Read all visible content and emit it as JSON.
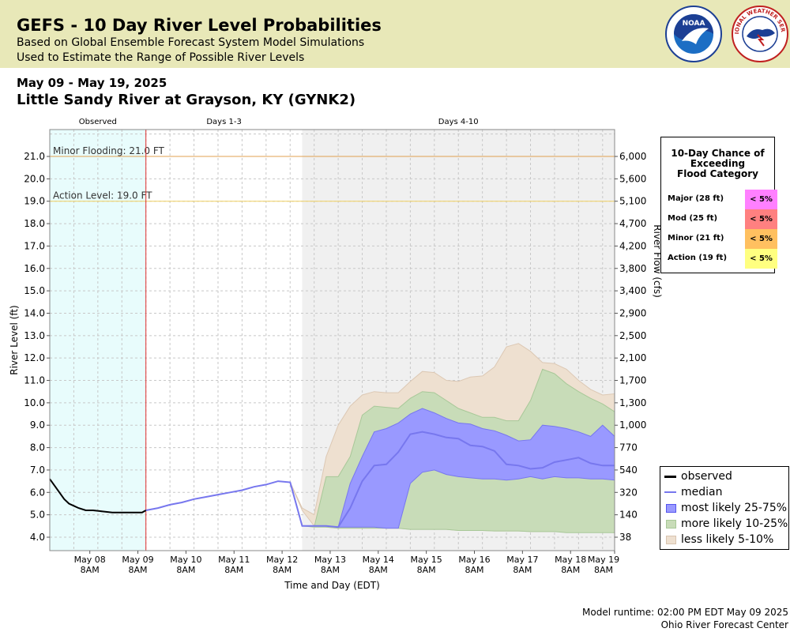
{
  "header": {
    "title": "GEFS - 10 Day River Level Probabilities",
    "subtitle1": "Based on Global Ensemble Forecast System Model Simulations",
    "subtitle2": "Used to Estimate the Range of Possible River Levels",
    "logo_noaa": "NOAA",
    "logo_nws": "NATIONAL WEATHER SERVICE"
  },
  "date_range": "May 09 - May 19, 2025",
  "station": "Little Sandy River at Grayson, KY (GYNK2)",
  "footer": {
    "runtime": "Model runtime: 02:00 PM EDT May 09 2025",
    "center": "Ohio River Forecast Center"
  },
  "exceedance": {
    "title_lines": [
      "10-Day Chance of",
      "Exceeding",
      "Flood Category"
    ],
    "rows": [
      {
        "label": "Major (28 ft)",
        "value": "< 5%",
        "color": "#ff80ff"
      },
      {
        "label": "Mod (25 ft)",
        "value": "< 5%",
        "color": "#ff8080"
      },
      {
        "label": "Minor (21 ft)",
        "value": "< 5%",
        "color": "#ffc060"
      },
      {
        "label": "Action (19 ft)",
        "value": "< 5%",
        "color": "#ffff80"
      }
    ]
  },
  "legend": [
    {
      "label": "observed",
      "type": "line",
      "color": "#000000"
    },
    {
      "label": "median",
      "type": "line",
      "color": "#7777ee"
    },
    {
      "label": "most likely 25-75%",
      "type": "box",
      "color": "#9999ff",
      "border": "#5555ee"
    },
    {
      "label": "more likely 10-25%",
      "type": "box",
      "color": "#c8dcb8",
      "border": "#a8c898"
    },
    {
      "label": "less likely 5-10%",
      "type": "box",
      "color": "#eee0d0",
      "border": "#d8c4b0"
    }
  ],
  "chart_data": {
    "type": "area",
    "xlabel": "Time and Day (EDT)",
    "ylabel": "River Level (ft)",
    "ylabel_right": "River Flow (cfs)",
    "ylim": [
      3.4,
      22.2
    ],
    "xlim_days": [
      7.5,
      19.25
    ],
    "grid": true,
    "x_ticks": [
      {
        "day": 8.333,
        "line1": "May 08",
        "line2": "8AM"
      },
      {
        "day": 9.333,
        "line1": "May 09",
        "line2": "8AM"
      },
      {
        "day": 10.333,
        "line1": "May 10",
        "line2": "8AM"
      },
      {
        "day": 11.333,
        "line1": "May 11",
        "line2": "8AM"
      },
      {
        "day": 12.333,
        "line1": "May 12",
        "line2": "8AM"
      },
      {
        "day": 13.333,
        "line1": "May 13",
        "line2": "8AM"
      },
      {
        "day": 14.333,
        "line1": "May 14",
        "line2": "8AM"
      },
      {
        "day": 15.333,
        "line1": "May 15",
        "line2": "8AM"
      },
      {
        "day": 16.333,
        "line1": "May 16",
        "line2": "8AM"
      },
      {
        "day": 17.333,
        "line1": "May 17",
        "line2": "8AM"
      },
      {
        "day": 18.333,
        "line1": "May 18",
        "line2": "8AM"
      },
      {
        "day": 19.333,
        "line1": "May 19",
        "line2": "8AM"
      }
    ],
    "y_ticks": [
      "4.0",
      "5.0",
      "6.0",
      "7.0",
      "8.0",
      "9.0",
      "10.0",
      "11.0",
      "12.0",
      "13.0",
      "14.0",
      "15.0",
      "16.0",
      "17.0",
      "18.0",
      "19.0",
      "20.0",
      "21.0"
    ],
    "right_ticks": [
      {
        "stage": 4.0,
        "label": "38"
      },
      {
        "stage": 5.0,
        "label": "140"
      },
      {
        "stage": 6.0,
        "label": "320"
      },
      {
        "stage": 7.0,
        "label": "540"
      },
      {
        "stage": 8.0,
        "label": "770"
      },
      {
        "stage": 9.0,
        "label": "1,000"
      },
      {
        "stage": 10.0,
        "label": "1,300"
      },
      {
        "stage": 11.0,
        "label": "1,700"
      },
      {
        "stage": 12.0,
        "label": "2,100"
      },
      {
        "stage": 13.0,
        "label": "2,500"
      },
      {
        "stage": 14.0,
        "label": "2,900"
      },
      {
        "stage": 15.0,
        "label": "3,400"
      },
      {
        "stage": 16.0,
        "label": "3,800"
      },
      {
        "stage": 17.0,
        "label": "4,200"
      },
      {
        "stage": 18.0,
        "label": "4,700"
      },
      {
        "stage": 19.0,
        "label": "5,100"
      },
      {
        "stage": 20.0,
        "label": "5,600"
      },
      {
        "stage": 21.0,
        "label": "6,000"
      }
    ],
    "periods": [
      {
        "label": "Observed",
        "start": 7.5,
        "end": 9.5,
        "color": "#e8fcfc"
      },
      {
        "label": "Days 1-3",
        "start": 9.5,
        "end": 12.75,
        "color": "#ffffff"
      },
      {
        "label": "Days 4-10",
        "start": 12.75,
        "end": 19.25,
        "color": "#f0f0f0"
      }
    ],
    "forecast_start": 9.5,
    "thresholds": [
      {
        "label": "Minor Flooding: 21.0 FT",
        "value": 21.0,
        "color": "#e0a050"
      },
      {
        "label": "Action Level: 19.0 FT",
        "value": 19.0,
        "color": "#f0d060"
      }
    ],
    "observed": {
      "x": [
        7.5,
        7.6,
        7.7,
        7.8,
        7.9,
        8.0,
        8.1,
        8.25,
        8.4,
        8.6,
        8.8,
        9.0,
        9.2,
        9.3,
        9.42,
        9.5
      ],
      "y": [
        6.6,
        6.3,
        6.0,
        5.7,
        5.5,
        5.4,
        5.3,
        5.2,
        5.2,
        5.15,
        5.1,
        5.1,
        5.1,
        5.1,
        5.1,
        5.2
      ]
    },
    "median": {
      "x": [
        9.5,
        9.75,
        10.0,
        10.25,
        10.5,
        10.75,
        11.0,
        11.25,
        11.5,
        11.75,
        12.0,
        12.25,
        12.5,
        12.75,
        13.0,
        13.25,
        13.5,
        13.75,
        14.0,
        14.25,
        14.5,
        14.75,
        15.0,
        15.25,
        15.5,
        15.75,
        16.0,
        16.25,
        16.5,
        16.75,
        17.0,
        17.25,
        17.5,
        17.75,
        18.0,
        18.25,
        18.5,
        18.75,
        19.0,
        19.25
      ],
      "y": [
        5.2,
        5.3,
        5.45,
        5.55,
        5.7,
        5.8,
        5.9,
        6.0,
        6.1,
        6.25,
        6.35,
        6.5,
        6.45,
        4.5,
        4.5,
        4.5,
        4.45,
        5.3,
        6.5,
        7.2,
        7.25,
        7.8,
        8.6,
        8.7,
        8.6,
        8.45,
        8.4,
        8.1,
        8.05,
        7.85,
        7.25,
        7.2,
        7.05,
        7.1,
        7.35,
        7.45,
        7.55,
        7.3,
        7.2,
        7.2
      ]
    },
    "band_25_75": {
      "x": [
        12.5,
        12.75,
        13.0,
        13.25,
        13.5,
        13.75,
        14.0,
        14.25,
        14.5,
        14.75,
        15.0,
        15.25,
        15.5,
        15.75,
        16.0,
        16.25,
        16.5,
        16.75,
        17.0,
        17.25,
        17.5,
        17.75,
        18.0,
        18.25,
        18.5,
        18.75,
        19.0,
        19.25
      ],
      "low": [
        6.45,
        4.5,
        4.5,
        4.5,
        4.45,
        4.45,
        4.45,
        4.45,
        4.4,
        4.4,
        6.4,
        6.9,
        7.0,
        6.8,
        6.7,
        6.65,
        6.6,
        6.6,
        6.55,
        6.6,
        6.7,
        6.6,
        6.7,
        6.65,
        6.65,
        6.6,
        6.6,
        6.55
      ],
      "high": [
        6.45,
        4.5,
        4.5,
        4.5,
        4.45,
        6.4,
        7.6,
        8.7,
        8.85,
        9.1,
        9.5,
        9.75,
        9.55,
        9.3,
        9.1,
        9.05,
        8.85,
        8.75,
        8.55,
        8.3,
        8.35,
        9.0,
        8.95,
        8.85,
        8.7,
        8.5,
        9.0,
        8.5
      ]
    },
    "band_10_90": {
      "x": [
        12.5,
        12.75,
        13.0,
        13.25,
        13.5,
        13.75,
        14.0,
        14.25,
        14.5,
        14.75,
        15.0,
        15.25,
        15.5,
        15.75,
        16.0,
        16.25,
        16.5,
        16.75,
        17.0,
        17.25,
        17.5,
        17.75,
        18.0,
        18.25,
        18.5,
        18.75,
        19.0,
        19.25
      ],
      "low": [
        6.45,
        4.5,
        4.45,
        4.45,
        4.4,
        4.4,
        4.4,
        4.4,
        4.4,
        4.4,
        4.35,
        4.35,
        4.35,
        4.35,
        4.3,
        4.3,
        4.3,
        4.28,
        4.28,
        4.28,
        4.25,
        4.25,
        4.25,
        4.2,
        4.2,
        4.2,
        4.2,
        4.2
      ],
      "high": [
        6.45,
        4.5,
        4.45,
        6.7,
        6.7,
        7.6,
        9.45,
        9.85,
        9.8,
        9.75,
        10.2,
        10.5,
        10.45,
        10.1,
        9.75,
        9.55,
        9.35,
        9.35,
        9.2,
        9.2,
        10.1,
        11.5,
        11.3,
        10.85,
        10.5,
        10.2,
        9.95,
        9.6
      ]
    },
    "band_5_95": {
      "x": [
        12.5,
        12.75,
        13.0,
        13.25,
        13.5,
        13.75,
        14.0,
        14.25,
        14.5,
        14.75,
        15.0,
        15.25,
        15.5,
        15.75,
        16.0,
        16.25,
        16.5,
        16.75,
        17.0,
        17.25,
        17.5,
        17.75,
        18.0,
        18.25,
        18.5,
        18.75,
        19.0,
        19.25
      ],
      "low": [
        6.45,
        5.2,
        4.5,
        4.45,
        4.4,
        4.4,
        4.4,
        4.4,
        4.4,
        4.4,
        4.35,
        4.35,
        4.35,
        4.35,
        4.3,
        4.3,
        4.3,
        4.28,
        4.28,
        4.28,
        4.25,
        4.25,
        4.25,
        4.3,
        4.7,
        4.35,
        4.25,
        4.2
      ],
      "high": [
        6.45,
        5.3,
        5.0,
        7.6,
        9.0,
        9.85,
        10.35,
        10.5,
        10.45,
        10.45,
        10.95,
        11.4,
        11.35,
        11.0,
        10.95,
        11.15,
        11.2,
        11.6,
        12.5,
        12.65,
        12.3,
        11.8,
        11.75,
        11.5,
        11.0,
        10.6,
        10.35,
        10.4
      ]
    }
  }
}
